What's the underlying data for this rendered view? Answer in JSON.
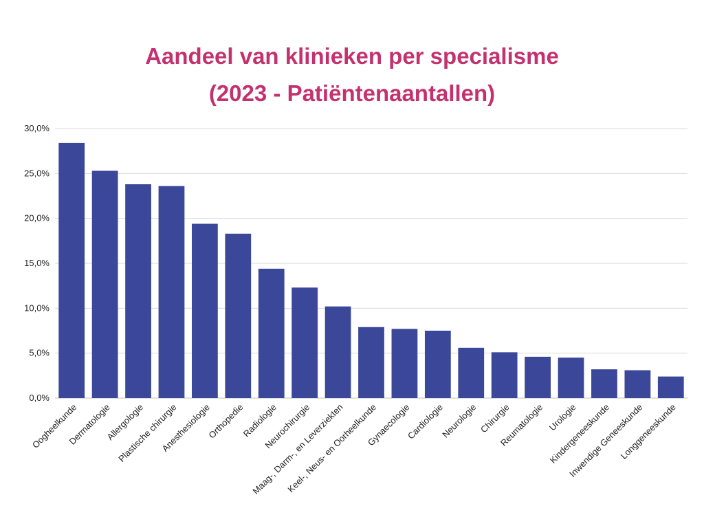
{
  "chart_data": {
    "type": "bar",
    "title": "Aandeel van klinieken per specialisme",
    "subtitle": "(2023 - Patiëntenaantallen)",
    "categories": [
      "Oogheelkunde",
      "Dermatologie",
      "Allergologie",
      "Plastische chirurgie",
      "Anesthesiologie",
      "Orthopedie",
      "Radiologie",
      "Neurochirurgie",
      "Maag-, Darm-, en Leverziekten",
      "Keel-, Neus- en Oorheelkunde",
      "Gynaecologie",
      "Cardiologie",
      "Neurologie",
      "Chirurgie",
      "Reumatologie",
      "Urologie",
      "Kindergeneeskunde",
      "Inwendige Geneeskunde",
      "Longgeneeskunde"
    ],
    "values": [
      28.4,
      25.3,
      23.8,
      23.6,
      19.4,
      18.3,
      14.4,
      12.3,
      10.2,
      7.9,
      7.7,
      7.5,
      5.6,
      5.1,
      4.6,
      4.5,
      3.2,
      3.1,
      2.4
    ],
    "ylim": [
      0,
      30
    ],
    "yticks": [
      "0,0%",
      "5,0%",
      "10,0%",
      "15,0%",
      "20,0%",
      "25,0%",
      "30,0%"
    ],
    "grid": true,
    "bar_color": "#3b4799",
    "grid_color": "#d9d9d9",
    "title_color": "#c3326f"
  }
}
